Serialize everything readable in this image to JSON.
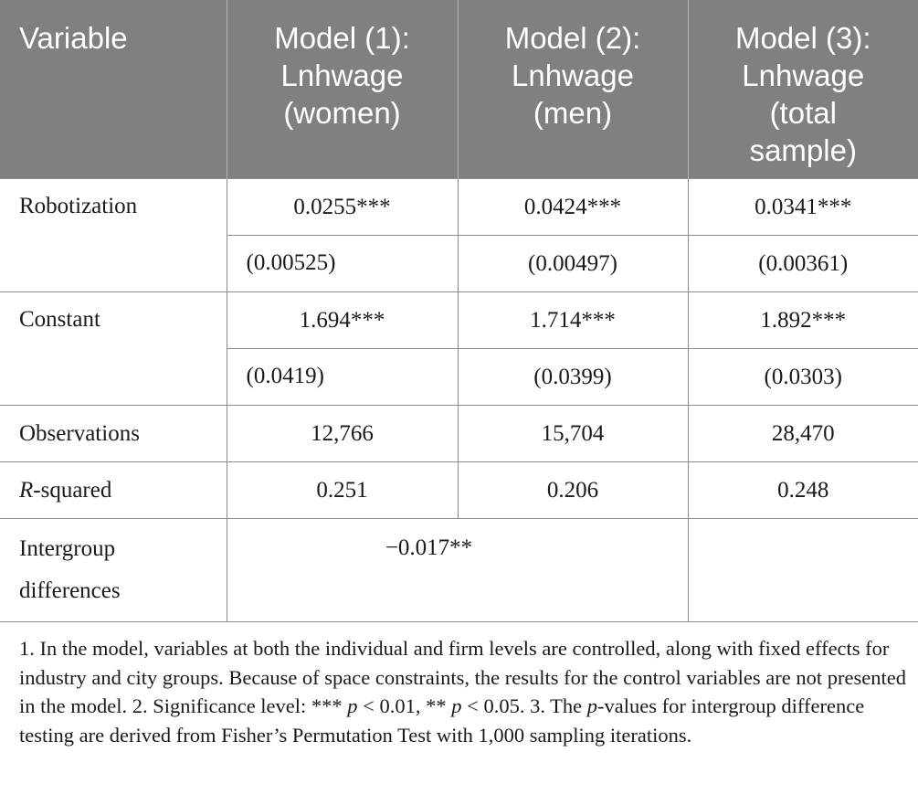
{
  "table": {
    "headers": {
      "variable": "Variable",
      "model1": [
        "Model (1):",
        "Lnhwage",
        "(women)"
      ],
      "model2": [
        "Model (2):",
        "Lnhwage",
        "(men)"
      ],
      "model3": [
        "Model (3):",
        "Lnhwage",
        "(total",
        "sample)"
      ]
    },
    "rows": {
      "robotization": {
        "label": "Robotization",
        "coef": [
          "0.0255***",
          "0.0424***",
          "0.0341***"
        ],
        "se": [
          "(0.00525)",
          "(0.00497)",
          "(0.00361)"
        ]
      },
      "constant": {
        "label": "Constant",
        "coef": [
          "1.694***",
          "1.714***",
          "1.892***"
        ],
        "se": [
          "(0.0419)",
          "(0.0399)",
          "(0.0303)"
        ]
      },
      "observations": {
        "label": "Observations",
        "values": [
          "12,766",
          "15,704",
          "28,470"
        ]
      },
      "rsquared": {
        "label_italic": "R",
        "label_rest": "-squared",
        "values": [
          "0.251",
          "0.206",
          "0.248"
        ]
      },
      "intergroup": {
        "label": "Intergroup differences",
        "value": "−0.017**"
      }
    }
  },
  "notes": {
    "part1": "1. In the model, variables at both the individual and firm levels are controlled, along with fixed effects for industry and city groups. Because of space constraints, the results for the control variables are not presented in the model. 2. Significance level: *** ",
    "p1": "p",
    "part2": " < 0.01, ** ",
    "p2": "p",
    "part3": " < 0.05. 3. The ",
    "p3": "p",
    "part4": "-values for intergroup difference testing are derived from Fisher’s Permutation Test with 1,000 sampling iterations."
  }
}
